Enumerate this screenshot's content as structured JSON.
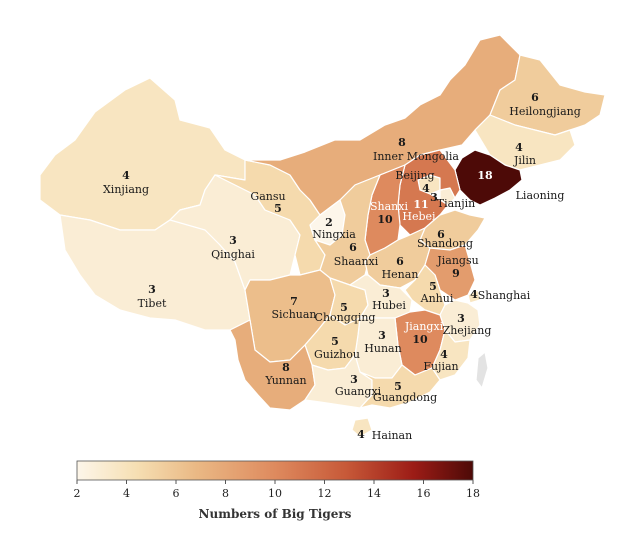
{
  "legend": {
    "title": "Numbers of Big Tigers",
    "min": 2,
    "max": 18,
    "ticks": [
      "2",
      "4",
      "6",
      "8",
      "10",
      "12",
      "14",
      "16",
      "18"
    ],
    "colors": [
      "#fdf6ea",
      "#f6dfb3",
      "#eab985",
      "#de8a5e",
      "#c75938",
      "#9c1c16",
      "#4d0a07"
    ]
  },
  "regions": [
    {
      "id": "xinjiang",
      "name": "Xinjiang",
      "value": 4,
      "num": "4"
    },
    {
      "id": "tibet",
      "name": "Tibet",
      "value": 3,
      "num": "3"
    },
    {
      "id": "qinghai",
      "name": "Qinghai",
      "value": 3,
      "num": "3"
    },
    {
      "id": "gansu",
      "name": "Gansu",
      "value": 5,
      "num": "5"
    },
    {
      "id": "inner-mongolia",
      "name": "Inner Mongolia",
      "value": 8,
      "num": "8"
    },
    {
      "id": "heilongjiang",
      "name": "Heilongjiang",
      "value": 6,
      "num": "6"
    },
    {
      "id": "jilin",
      "name": "Jilin",
      "value": 4,
      "num": "4"
    },
    {
      "id": "liaoning",
      "name": "Liaoning",
      "value": 18,
      "num": "18"
    },
    {
      "id": "beijing",
      "name": "Beijing",
      "value": 4,
      "num": "4"
    },
    {
      "id": "tianjin",
      "name": "Tianjin",
      "value": 3,
      "num": "3"
    },
    {
      "id": "hebei",
      "name": "Hebei",
      "value": 11,
      "num": "11"
    },
    {
      "id": "shanxi",
      "name": "Shanxi",
      "value": 10,
      "num": "10"
    },
    {
      "id": "ningxia",
      "name": "Ningxia",
      "value": 2,
      "num": "2"
    },
    {
      "id": "shaanxi",
      "name": "Shaanxi",
      "value": 6,
      "num": "6"
    },
    {
      "id": "shandong",
      "name": "Shandong",
      "value": 6,
      "num": "6"
    },
    {
      "id": "henan",
      "name": "Henan",
      "value": 6,
      "num": "6"
    },
    {
      "id": "jiangsu",
      "name": "Jiangsu",
      "value": 9,
      "num": "9"
    },
    {
      "id": "anhui",
      "name": "Anhui",
      "value": 5,
      "num": "5"
    },
    {
      "id": "shanghai",
      "name": "Shanghai",
      "value": 4,
      "num": "4"
    },
    {
      "id": "sichuan",
      "name": "Sichuan",
      "value": 7,
      "num": "7"
    },
    {
      "id": "chongqing",
      "name": "Chongqing",
      "value": 5,
      "num": "5"
    },
    {
      "id": "hubei",
      "name": "Hubei",
      "value": 3,
      "num": "3"
    },
    {
      "id": "zhejiang",
      "name": "Zhejiang",
      "value": 3,
      "num": "3"
    },
    {
      "id": "jiangxi",
      "name": "Jiangxi",
      "value": 10,
      "num": "10"
    },
    {
      "id": "hunan",
      "name": "Hunan",
      "value": 3,
      "num": "3"
    },
    {
      "id": "guizhou",
      "name": "Guizhou",
      "value": 5,
      "num": "5"
    },
    {
      "id": "fujian",
      "name": "Fujian",
      "value": 4,
      "num": "4"
    },
    {
      "id": "yunnan",
      "name": "Yunnan",
      "value": 8,
      "num": "8"
    },
    {
      "id": "guangxi",
      "name": "Guangxi",
      "value": 3,
      "num": "3"
    },
    {
      "id": "guangdong",
      "name": "Guangdong",
      "value": 5,
      "num": "5"
    },
    {
      "id": "hainan",
      "name": "Hainan",
      "value": 4,
      "num": "4"
    },
    {
      "id": "taiwan",
      "name": "",
      "value": null,
      "num": ""
    }
  ]
}
